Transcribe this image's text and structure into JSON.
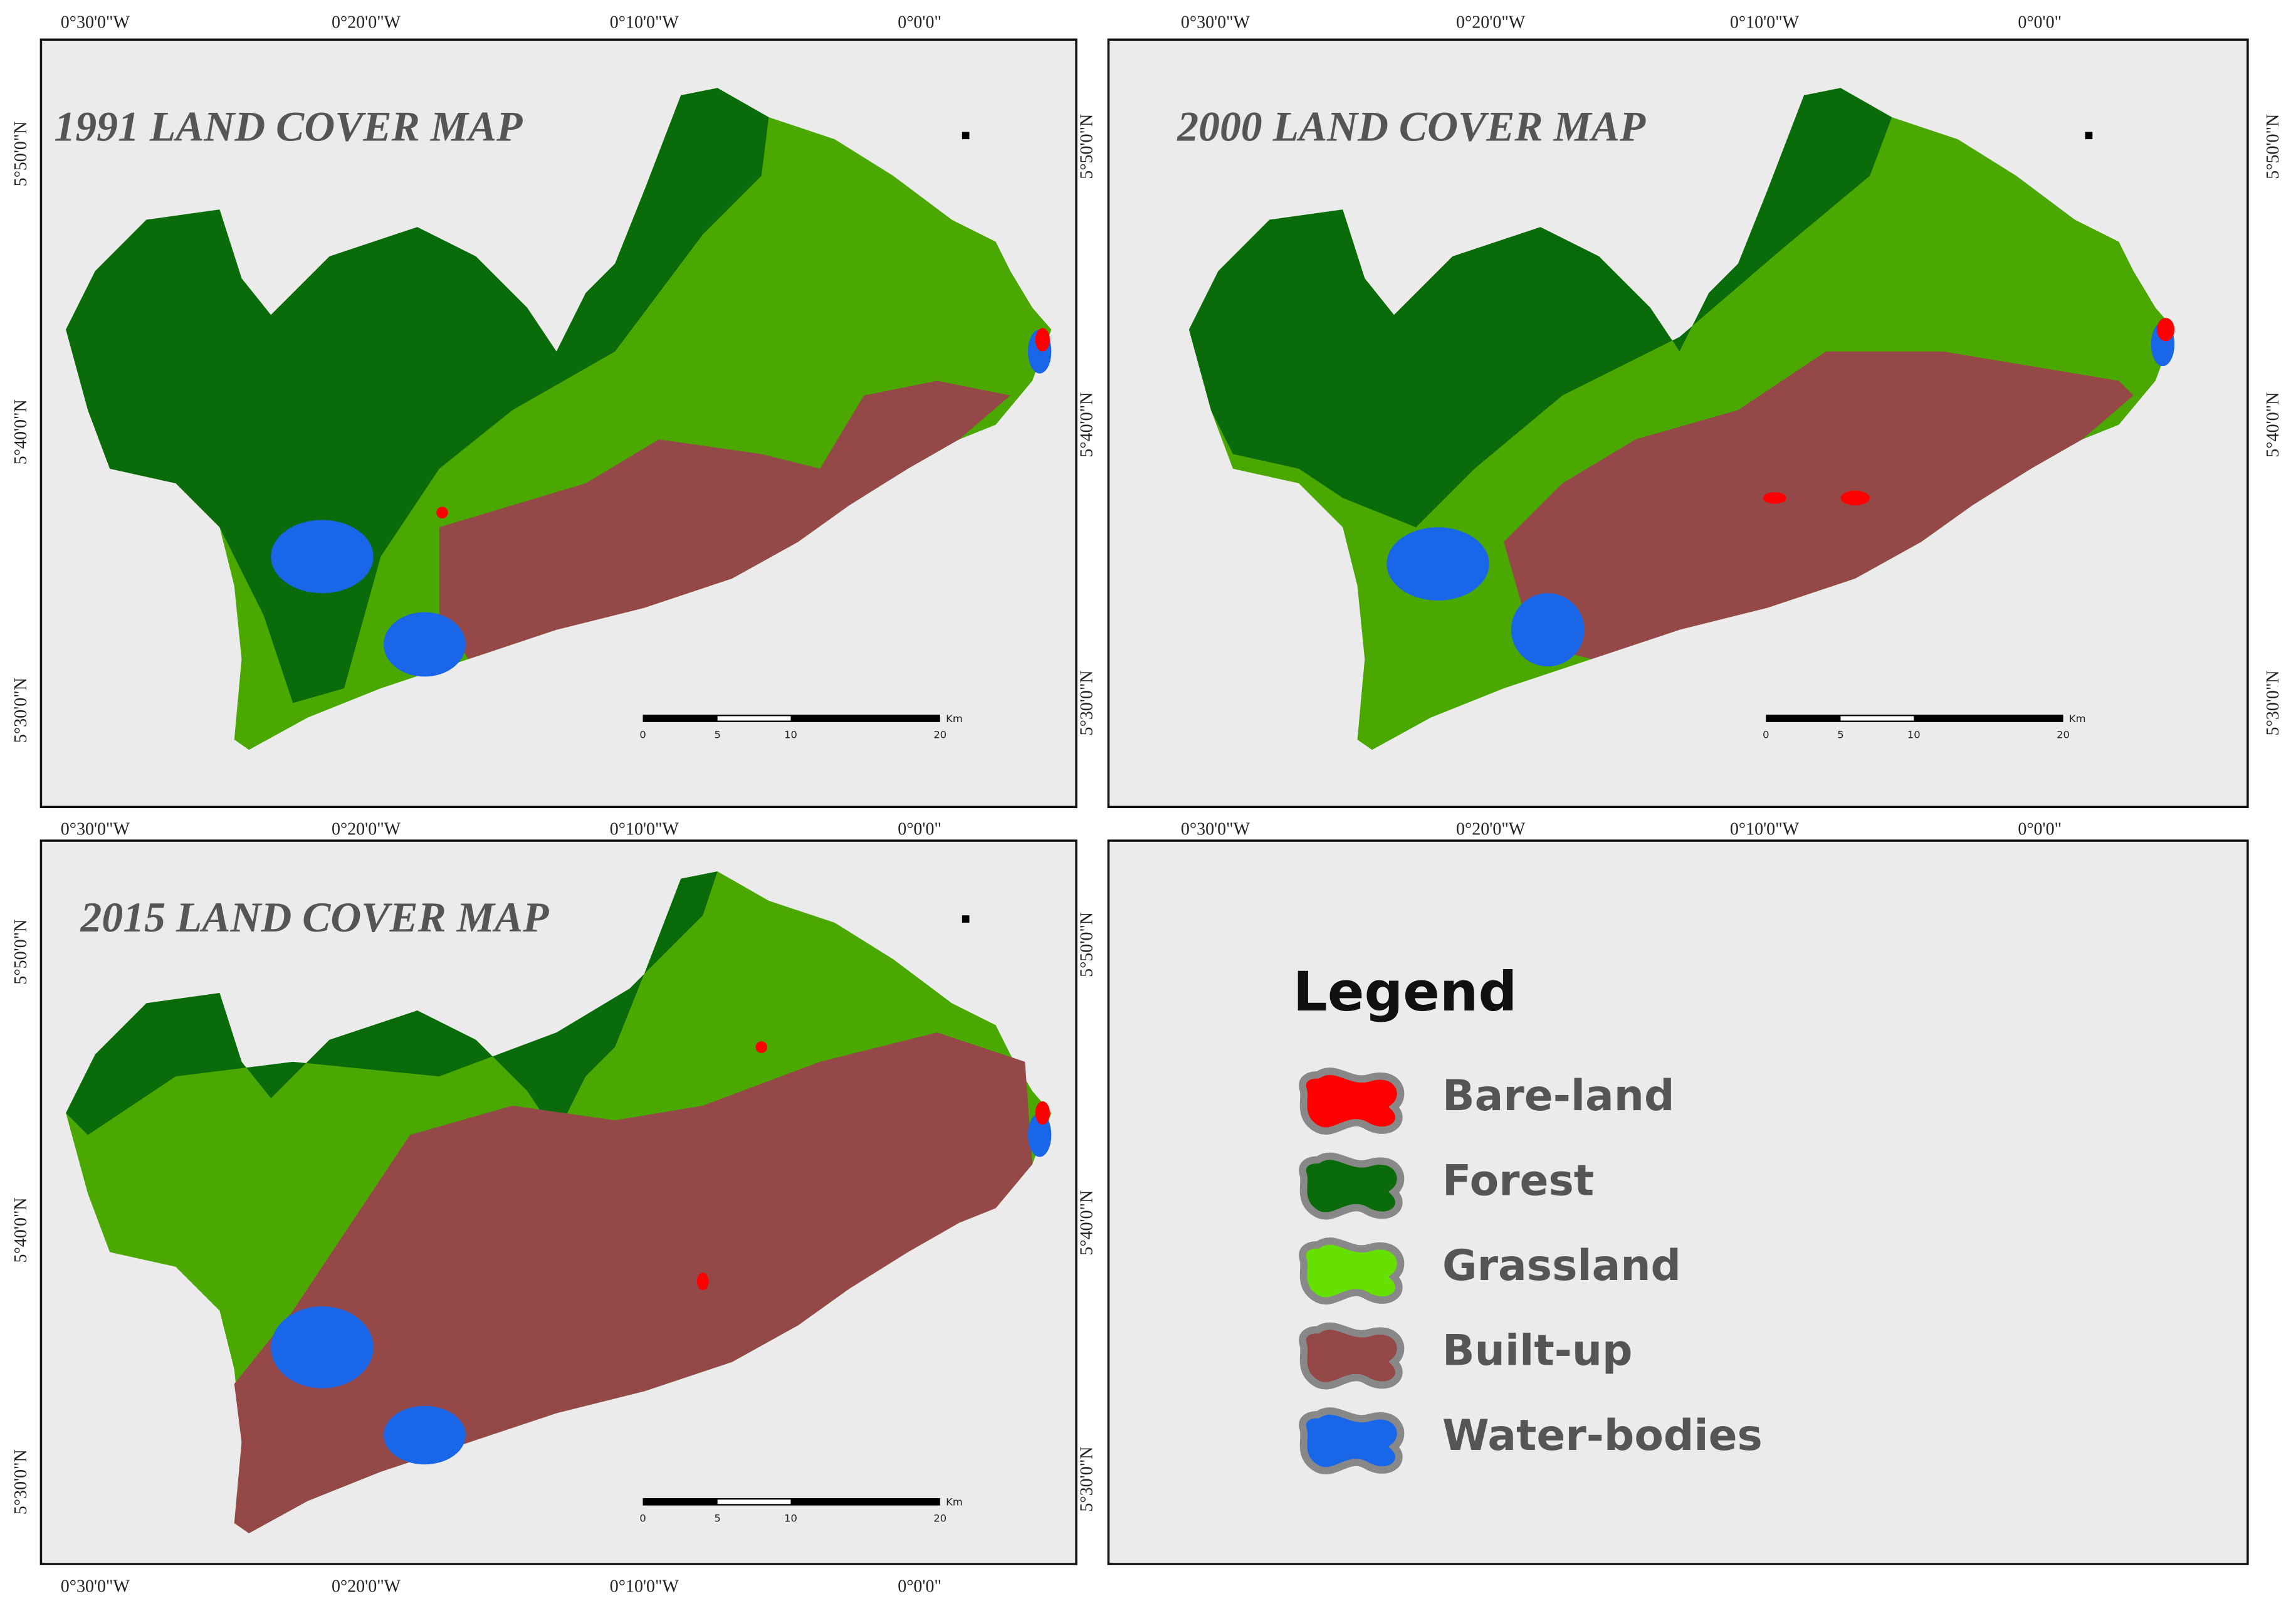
{
  "maps": [
    {
      "title": "1991 LAND COVER MAP"
    },
    {
      "title": "2000 LAND COVER MAP"
    },
    {
      "title": "2015 LAND COVER MAP"
    }
  ],
  "lon_labels": [
    "0°30'0\"W",
    "0°20'0\"W",
    "0°10'0\"W",
    "0°0'0\""
  ],
  "lat_labels": [
    "5°50'0\"N",
    "5°40'0\"N",
    "5°30'0\"N"
  ],
  "scale_labels": [
    "0",
    "5",
    "10",
    "20",
    "Km"
  ],
  "legend": {
    "title": "Legend",
    "items": [
      {
        "label": "Bare-land",
        "color": "#ff0000"
      },
      {
        "label": "Forest",
        "color": "#0a6b0a"
      },
      {
        "label": "Grassland",
        "color": "#66e000"
      },
      {
        "label": "Built-up",
        "color": "#944848"
      },
      {
        "label": "Water-bodies",
        "color": "#1a66e8"
      }
    ]
  }
}
